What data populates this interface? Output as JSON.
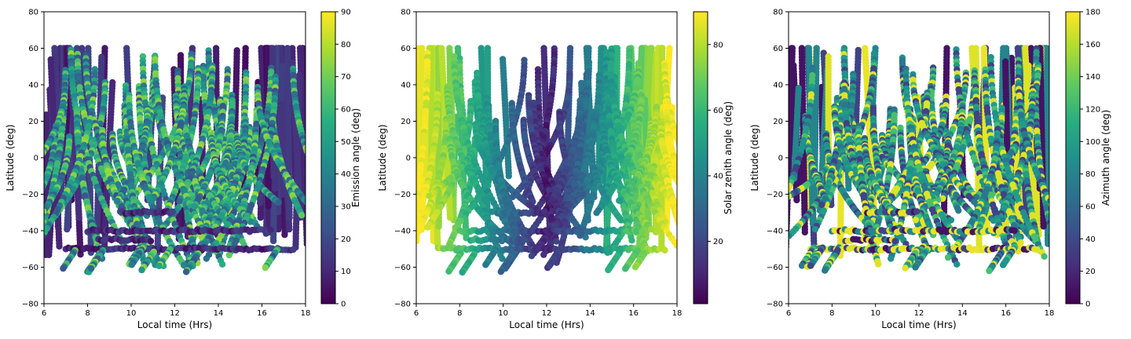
{
  "chart_data": [
    {
      "type": "scatter",
      "xlabel": "Local time (Hrs)",
      "ylabel": "Latitude (deg)",
      "xlim": [
        6,
        18
      ],
      "ylim": [
        -80,
        80
      ],
      "xticks": [
        "6",
        "8",
        "10",
        "12",
        "14",
        "16",
        "18"
      ],
      "yticks": [
        "80",
        "60",
        "40",
        "20",
        "0",
        "−20",
        "−40",
        "−60",
        "−80"
      ],
      "colorbar": {
        "label": "Emission angle (deg)",
        "range": [
          0,
          90
        ],
        "ticks": [
          "0",
          "10",
          "20",
          "30",
          "40",
          "50",
          "60",
          "70",
          "80",
          "90"
        ],
        "colormap": "viridis"
      },
      "grid": false,
      "seed": 11
    },
    {
      "type": "scatter",
      "xlabel": "Local time (Hrs)",
      "ylabel": "Latitude (deg)",
      "xlim": [
        6,
        18
      ],
      "ylim": [
        -80,
        80
      ],
      "xticks": [
        "6",
        "8",
        "10",
        "12",
        "14",
        "16",
        "18"
      ],
      "yticks": [
        "80",
        "60",
        "40",
        "20",
        "0",
        "−20",
        "−40",
        "−60",
        "−80"
      ],
      "colorbar": {
        "label": "Solar zenith angle (deg)",
        "range": [
          1,
          90
        ],
        "ticks": [
          "20",
          "40",
          "60",
          "80"
        ],
        "colormap": "viridis"
      },
      "grid": false,
      "seed": 23
    },
    {
      "type": "scatter",
      "xlabel": "Local time (Hrs)",
      "ylabel": "Latitude (deg)",
      "xlim": [
        6,
        18
      ],
      "ylim": [
        -80,
        80
      ],
      "xticks": [
        "6",
        "8",
        "10",
        "12",
        "14",
        "16",
        "18"
      ],
      "yticks": [
        "80",
        "60",
        "40",
        "20",
        "0",
        "−20",
        "−40",
        "−60",
        "−80"
      ],
      "colorbar": {
        "label": "Azimuth angle (deg)",
        "range": [
          0,
          180
        ],
        "ticks": [
          "0",
          "20",
          "40",
          "60",
          "80",
          "100",
          "120",
          "140",
          "160",
          "180"
        ],
        "colormap": "viridis"
      },
      "grid": false,
      "seed": 37
    }
  ]
}
